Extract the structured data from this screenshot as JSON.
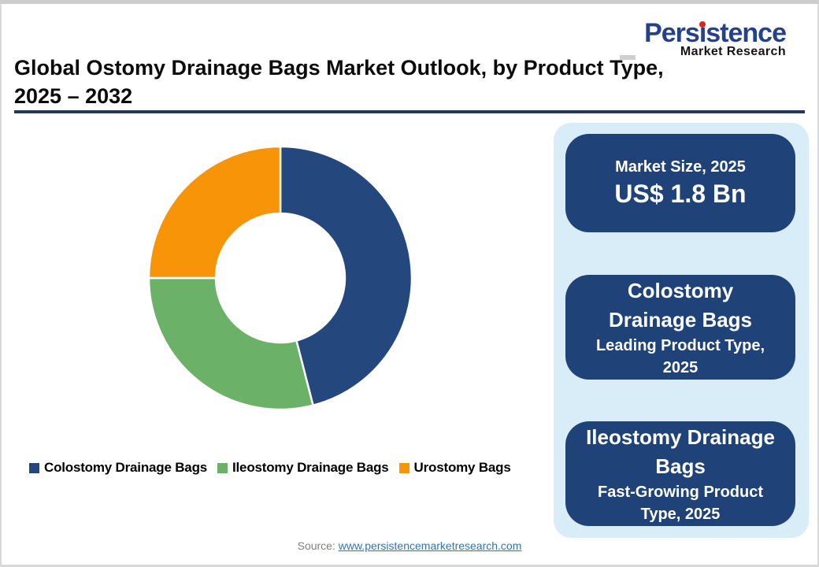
{
  "logo": {
    "name_pre": "Pers",
    "name_i": "i",
    "name_post": "stence",
    "tagline": "Market Research"
  },
  "header": {
    "title_line1": "Global Ostomy Drainage Bags Market Outlook, by Product Type,",
    "title_line2": "2025 – 2032"
  },
  "chart_data": {
    "type": "pie",
    "subtype": "donut",
    "title": "Global Ostomy Drainage Bags Market Outlook, by Product Type, 2025 – 2032",
    "labels": [
      "Colostomy Drainage Bags",
      "Ileostomy Drainage Bags",
      "Urostomy Bags"
    ],
    "values": [
      46,
      29,
      25
    ],
    "values_are_estimates_percent": true,
    "colors": [
      "#24477E",
      "#6CB168",
      "#F79408"
    ],
    "start_angle_deg": 0,
    "direction": "clockwise",
    "inner_radius_ratio": 0.49,
    "legend_position": "bottom"
  },
  "legend": {
    "items": [
      {
        "label": "Colostomy Drainage Bags"
      },
      {
        "label": "Ileostomy Drainage Bags"
      },
      {
        "label": "Urostomy Bags"
      }
    ]
  },
  "panel": {
    "cards": [
      {
        "title": "Market Size, 2025",
        "value": "US$ 1.8 Bn"
      },
      {
        "title": "Colostomy\nDrainage Bags",
        "subtitle": "Leading Product Type,\n2025"
      },
      {
        "title": "Ileostomy Drainage\nBags",
        "subtitle": "Fast-Growing Product\nType, 2025"
      }
    ]
  },
  "footer": {
    "source_label": "Source:",
    "source_link": "www.persistencemarketresearch.com"
  },
  "colors": {
    "slice_colostomy": "#24477E",
    "slice_ileostomy": "#6CB168",
    "slice_urostomy": "#F79408",
    "card_navy": "#1F4279",
    "panel_light_blue": "#D9EDF8",
    "title_rule_navy": "#1F3864",
    "logo_blue": "#25418A",
    "logo_dot_red": "#E2231A",
    "link_blue": "#2E75B6",
    "source_gray": "#7F7F7F",
    "frame_gray": "#CDCDCD"
  }
}
